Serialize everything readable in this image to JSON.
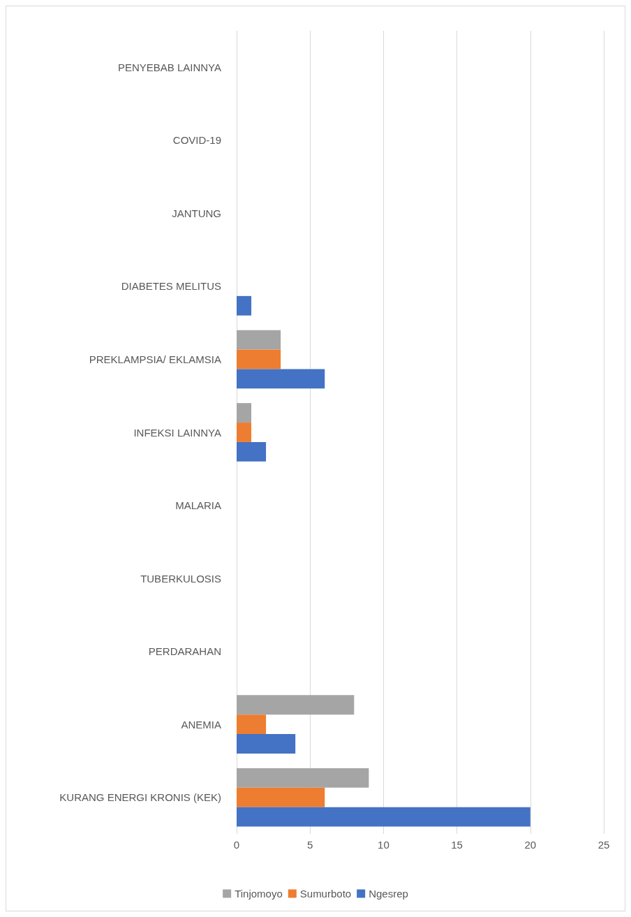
{
  "chart_data": {
    "type": "bar",
    "orientation": "horizontal",
    "categories": [
      "PENYEBAB LAINNYA",
      "COVID-19",
      "JANTUNG",
      "DIABETES MELITUS",
      "PREKLAMPSIA/ EKLAMSIA",
      "INFEKSI LAINNYA",
      "MALARIA",
      "TUBERKULOSIS",
      "PERDARAHAN",
      "ANEMIA",
      "KURANG ENERGI KRONIS (KEK)"
    ],
    "series": [
      {
        "name": "Tinjomoyo",
        "color": "#a5a5a5",
        "values": [
          0,
          0,
          0,
          0,
          3,
          1,
          0,
          0,
          0,
          8,
          9
        ]
      },
      {
        "name": "Sumurboto",
        "color": "#ed7d31",
        "values": [
          0,
          0,
          0,
          0,
          3,
          1,
          0,
          0,
          0,
          2,
          6
        ]
      },
      {
        "name": "Ngesrep",
        "color": "#4472c4",
        "values": [
          0,
          0,
          0,
          1,
          6,
          2,
          0,
          0,
          0,
          4,
          20
        ]
      }
    ],
    "xlim": [
      0,
      25
    ],
    "xticks": [
      0,
      5,
      10,
      15,
      20,
      25
    ],
    "grid": "x",
    "legend": "bottom"
  }
}
